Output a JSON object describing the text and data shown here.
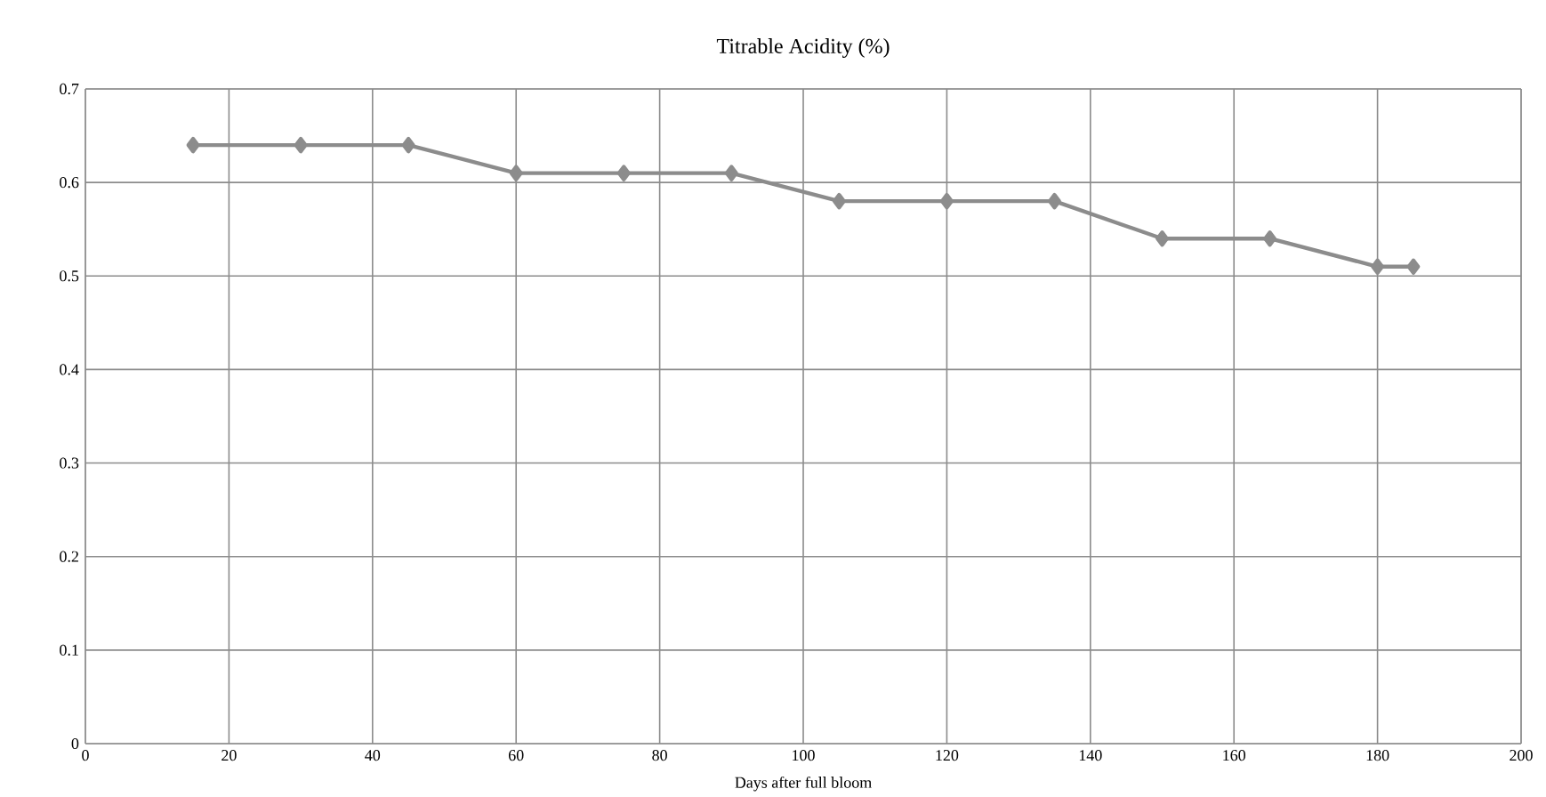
{
  "chart_data": {
    "type": "line",
    "title": "Titrable Acidity (%)",
    "xlabel": "Days after full bloom",
    "x": [
      15,
      30,
      45,
      60,
      75,
      90,
      105,
      120,
      135,
      150,
      165,
      180,
      185
    ],
    "series": [
      {
        "color": "#8c8c8c",
        "values": [
          0.64,
          0.64,
          0.64,
          0.61,
          0.61,
          0.61,
          0.58,
          0.58,
          0.58,
          0.54,
          0.54,
          0.51,
          0.51
        ]
      }
    ],
    "xlim": [
      0,
      200
    ],
    "xticks": [
      0,
      20,
      40,
      60,
      80,
      100,
      120,
      140,
      160,
      180,
      200
    ],
    "ylim": [
      0,
      0.7
    ],
    "yticks": [
      0,
      0.1,
      0.2,
      0.3,
      0.4,
      0.5,
      0.6,
      0.7
    ],
    "grid": true,
    "marker": "diamond",
    "line_style": "solid"
  }
}
